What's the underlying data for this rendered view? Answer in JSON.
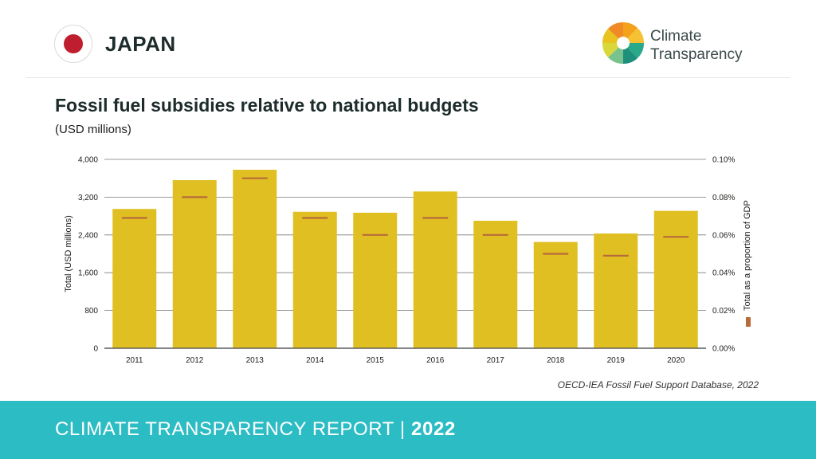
{
  "header": {
    "country": "JAPAN",
    "brand_line1": "Climate",
    "brand_line2": "Transparency"
  },
  "page": {
    "title": "Fossil fuel subsidies relative to national budgets",
    "subtitle": "(USD millions)",
    "source": "OECD-IEA Fossil Fuel Support Database, 2022"
  },
  "footer": {
    "report_label": "CLIMATE TRANSPARENCY REPORT",
    "separator": "|",
    "year": "2022"
  },
  "colors": {
    "bar": "#e0bf22",
    "gdp_marker": "#b86b3a",
    "flag_red": "#be1e2d",
    "footer_bg": "#2cbcc4"
  },
  "chart_data": {
    "type": "bar",
    "categories": [
      "2011",
      "2012",
      "2013",
      "2014",
      "2015",
      "2016",
      "2017",
      "2018",
      "2019",
      "2020"
    ],
    "series": [
      {
        "values": [
          2950,
          3560,
          3780,
          2890,
          2870,
          3320,
          2700,
          2250,
          2430,
          2910
        ]
      },
      {
        "name": "Total as a proportion of GDP",
        "values": [
          0.069,
          0.08,
          0.09,
          0.069,
          0.06,
          0.069,
          0.06,
          0.05,
          0.049,
          0.059
        ]
      }
    ],
    "ylabel": "Total (USD millions)",
    "y2label": "Total as a proportion of GDP",
    "ylim": [
      0,
      4000
    ],
    "y2lim": [
      0,
      0.1
    ],
    "yticks": [
      "0",
      "800",
      "1,600",
      "2,400",
      "3,200",
      "4,000"
    ],
    "y2ticks": [
      "0.00%",
      "0.02%",
      "0.04%",
      "0.06%",
      "0.08%",
      "0.10%"
    ],
    "grid": true,
    "legend": "right"
  }
}
